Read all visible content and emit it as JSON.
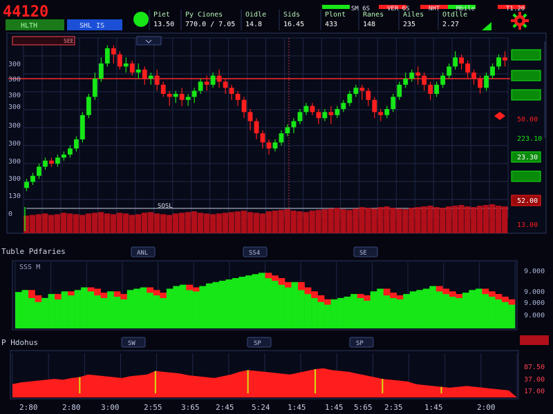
{
  "colors": {
    "background": "#05060f",
    "panel": "#0a0d1c",
    "grid": "#1f2a4a",
    "up": "#17e617",
    "down": "#ff1e1e",
    "badge_blue": "#1a4fd6",
    "text": "#e6e8f0"
  },
  "header": {
    "ticker_price": "44120",
    "tiles": [
      {
        "label": "Piet",
        "value": "13.50"
      },
      {
        "label": "Py Ciones",
        "value": "770.0 / 7.05"
      },
      {
        "label": "Oidle",
        "value": "14.8"
      },
      {
        "label": "Sids",
        "value": "16.45"
      },
      {
        "label": "Plont",
        "value": "433"
      },
      {
        "label": "Ranes",
        "value": "148"
      },
      {
        "label": "Ailes",
        "value": "235"
      },
      {
        "label": "Otdlle",
        "value": "2.27"
      }
    ],
    "legend": [
      {
        "label": "SM 6S",
        "color": "#17e617"
      },
      {
        "label": "VER 6S",
        "color": "#ff1e1e"
      },
      {
        "label": "NHT",
        "color": "#ff1e1e"
      },
      {
        "label": "Mbile",
        "color": "#17e617"
      },
      {
        "label": "T1.20",
        "color": "#ff1e1e"
      }
    ],
    "tab_green": "HLTH",
    "tab_blue": "SHL IS",
    "corner_icon": "settings-gear-icon"
  },
  "chart_data": [
    {
      "type": "candlestick",
      "title": "",
      "toolbar_labels": [
        "SEE",
        ""
      ],
      "volume_label": "SOSL",
      "y_ticks": [
        "300",
        "300",
        "300",
        "300",
        "300",
        "300",
        "300",
        "300",
        "130",
        "0"
      ],
      "right_axis_labels": [
        {
          "text": "",
          "color": "#17e617",
          "badge": true
        },
        {
          "text": "",
          "color": "#17e617",
          "badge": true
        },
        {
          "text": "",
          "color": "#17e617",
          "badge": true
        },
        {
          "text": "50.00",
          "color": "#ff1e1e",
          "badge": false
        },
        {
          "text": "223.10",
          "color": "#17e617",
          "badge": false
        },
        {
          "text": "23.30",
          "color": "#17e617",
          "badge": true
        },
        {
          "text": "",
          "color": "#17e617",
          "badge": true
        },
        {
          "text": "52.00",
          "color": "#ff1e1e",
          "badge": true
        },
        {
          "text": "13.00",
          "color": "#ff1e1e",
          "badge": false
        }
      ],
      "price_range": [
        0,
        100
      ],
      "reference_line": 80,
      "candles": [
        [
          8,
          12,
          6,
          14
        ],
        [
          12,
          16,
          10,
          18
        ],
        [
          16,
          22,
          14,
          24
        ],
        [
          22,
          26,
          20,
          28
        ],
        [
          26,
          24,
          22,
          28
        ],
        [
          24,
          28,
          22,
          30
        ],
        [
          28,
          30,
          26,
          32
        ],
        [
          30,
          34,
          28,
          36
        ],
        [
          34,
          40,
          32,
          42
        ],
        [
          40,
          56,
          38,
          58
        ],
        [
          56,
          68,
          54,
          70
        ],
        [
          68,
          80,
          66,
          84
        ],
        [
          80,
          90,
          78,
          94
        ],
        [
          90,
          100,
          88,
          102
        ],
        [
          100,
          96,
          90,
          102
        ],
        [
          96,
          88,
          86,
          98
        ],
        [
          88,
          90,
          84,
          94
        ],
        [
          90,
          84,
          82,
          92
        ],
        [
          84,
          86,
          80,
          90
        ],
        [
          86,
          80,
          76,
          88
        ],
        [
          80,
          82,
          76,
          84
        ],
        [
          82,
          76,
          72,
          86
        ],
        [
          76,
          70,
          68,
          78
        ],
        [
          70,
          68,
          62,
          72
        ],
        [
          68,
          70,
          64,
          72
        ],
        [
          70,
          66,
          62,
          74
        ],
        [
          66,
          68,
          62,
          70
        ],
        [
          68,
          72,
          64,
          74
        ],
        [
          72,
          78,
          70,
          80
        ],
        [
          78,
          76,
          72,
          82
        ],
        [
          76,
          82,
          74,
          84
        ],
        [
          82,
          78,
          74,
          86
        ],
        [
          78,
          74,
          70,
          80
        ],
        [
          74,
          70,
          66,
          76
        ],
        [
          70,
          66,
          62,
          72
        ],
        [
          66,
          58,
          54,
          68
        ],
        [
          58,
          52,
          46,
          60
        ],
        [
          52,
          44,
          40,
          54
        ],
        [
          44,
          38,
          34,
          46
        ],
        [
          38,
          34,
          30,
          40
        ],
        [
          34,
          38,
          32,
          40
        ],
        [
          38,
          44,
          36,
          46
        ],
        [
          44,
          48,
          42,
          50
        ],
        [
          48,
          52,
          44,
          54
        ],
        [
          52,
          58,
          50,
          60
        ],
        [
          58,
          62,
          56,
          64
        ],
        [
          62,
          58,
          56,
          64
        ],
        [
          58,
          54,
          50,
          60
        ],
        [
          54,
          58,
          52,
          60
        ],
        [
          58,
          56,
          50,
          62
        ],
        [
          56,
          60,
          54,
          62
        ],
        [
          60,
          64,
          58,
          66
        ],
        [
          64,
          70,
          62,
          72
        ],
        [
          70,
          74,
          68,
          76
        ],
        [
          74,
          72,
          66,
          76
        ],
        [
          72,
          66,
          62,
          74
        ],
        [
          66,
          58,
          54,
          68
        ],
        [
          58,
          56,
          52,
          60
        ],
        [
          56,
          60,
          54,
          62
        ],
        [
          60,
          68,
          58,
          70
        ],
        [
          68,
          76,
          66,
          78
        ],
        [
          76,
          80,
          74,
          84
        ],
        [
          80,
          84,
          78,
          86
        ],
        [
          84,
          82,
          76,
          88
        ],
        [
          82,
          76,
          72,
          84
        ],
        [
          76,
          70,
          66,
          78
        ],
        [
          70,
          76,
          68,
          78
        ],
        [
          76,
          82,
          74,
          84
        ],
        [
          82,
          88,
          80,
          90
        ],
        [
          88,
          94,
          86,
          98
        ],
        [
          94,
          90,
          86,
          96
        ],
        [
          90,
          84,
          80,
          92
        ],
        [
          84,
          80,
          76,
          86
        ],
        [
          80,
          74,
          70,
          82
        ],
        [
          74,
          82,
          72,
          84
        ],
        [
          82,
          88,
          80,
          90
        ],
        [
          88,
          94,
          86,
          96
        ],
        [
          94,
          92,
          88,
          98
        ]
      ],
      "volume": [
        38,
        40,
        42,
        44,
        40,
        42,
        46,
        44,
        42,
        40,
        44,
        46,
        48,
        44,
        42,
        46,
        44,
        40,
        42,
        46,
        48,
        44,
        42,
        40,
        44,
        46,
        48,
        50,
        46,
        44,
        42,
        44,
        46,
        48,
        50,
        52,
        48,
        46,
        44,
        50,
        52,
        54,
        56,
        52,
        50,
        48,
        52,
        54,
        56,
        58,
        60,
        56,
        54,
        58,
        62,
        60,
        58,
        62,
        64,
        60,
        58,
        56,
        60,
        62,
        64,
        66,
        62,
        60,
        64,
        66,
        68,
        64,
        62,
        66,
        68,
        70,
        66,
        64
      ]
    },
    {
      "type": "area",
      "title": "Tuble Pdfaries",
      "subtitle": "SSS M",
      "tabs": [
        "ANL",
        "SS4",
        "SE"
      ],
      "y_ticks": [
        "9.000",
        "9.000",
        "9.000",
        "9.000"
      ],
      "range": [
        0,
        100
      ],
      "values": [
        55,
        58,
        50,
        44,
        46,
        52,
        48,
        56,
        54,
        58,
        62,
        60,
        54,
        50,
        56,
        52,
        48,
        58,
        60,
        62,
        58,
        54,
        50,
        60,
        64,
        66,
        62,
        60,
        64,
        68,
        70,
        72,
        74,
        76,
        78,
        80,
        82,
        84,
        80,
        76,
        70,
        66,
        70,
        62,
        56,
        50,
        44,
        40,
        44,
        46,
        48,
        52,
        50,
        46,
        56,
        60,
        54,
        50,
        48,
        52,
        56,
        58,
        60,
        64,
        60,
        56,
        52,
        50,
        54,
        58,
        60,
        56,
        52,
        48,
        44,
        40
      ],
      "colors": [
        "#17e617",
        "#ff1e1e"
      ]
    },
    {
      "type": "area",
      "title": "P Hdohus",
      "tabs": [
        "SW",
        "SP",
        "SP"
      ],
      "y_ticks": [
        "",
        "87.50",
        "37.00",
        "17.00"
      ],
      "x_ticks": [
        "2:80",
        "2:80",
        "3:00",
        "2:55",
        "3:65",
        "2:45",
        "5:24",
        "1:45",
        "1:45",
        "5:65",
        "2:35",
        "1:45",
        "2:00"
      ],
      "badge": "",
      "range": [
        0,
        100
      ],
      "values": [
        30,
        34,
        36,
        38,
        40,
        42,
        40,
        44,
        46,
        52,
        50,
        48,
        46,
        44,
        48,
        50,
        52,
        60,
        58,
        56,
        54,
        50,
        48,
        46,
        44,
        48,
        52,
        58,
        62,
        60,
        58,
        56,
        54,
        52,
        56,
        60,
        64,
        66,
        62,
        60,
        58,
        54,
        50,
        46,
        42,
        40,
        38,
        36,
        30,
        28,
        26,
        24,
        22,
        24,
        26,
        24,
        22,
        20,
        18,
        16
      ],
      "colors": [
        "#ff1e1e",
        "#17e617"
      ]
    }
  ]
}
